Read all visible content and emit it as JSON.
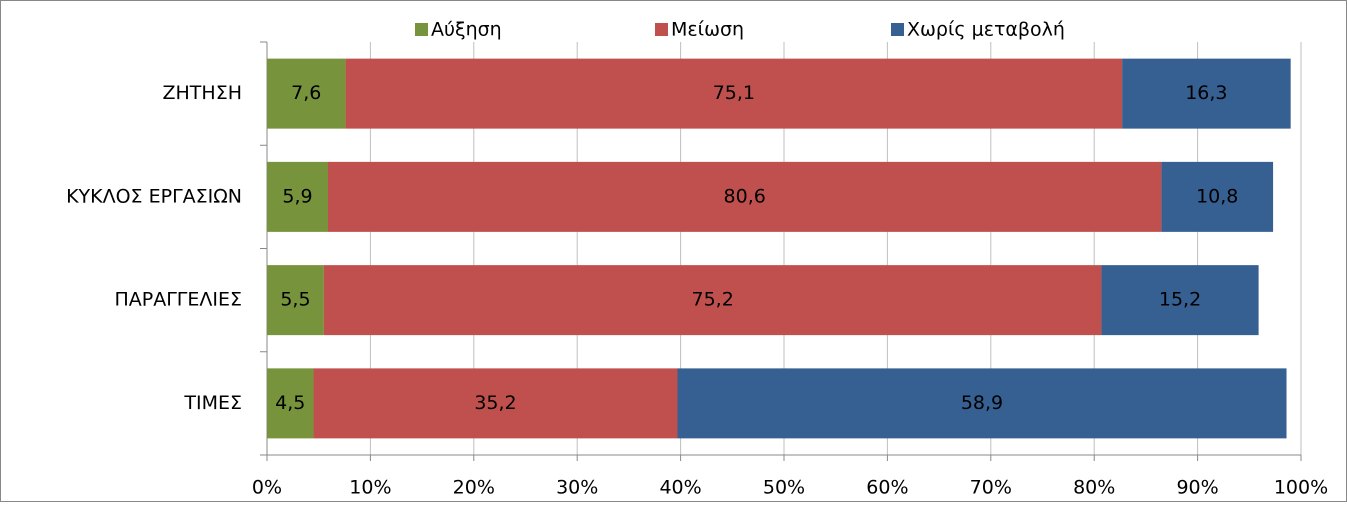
{
  "chart_data": {
    "type": "stacked-bar",
    "orientation": "horizontal",
    "categories": [
      "ΖΗΤΗΣΗ",
      "ΚΥΚΛΟΣ ΕΡΓΑΣΙΩΝ",
      "ΠΑΡΑΓΓΕΛΙΕΣ",
      "ΤΙΜΕΣ"
    ],
    "series": [
      {
        "name": "Αύξηση",
        "color": "#77933c",
        "values": [
          7.6,
          5.9,
          5.5,
          4.5
        ],
        "value_labels": [
          "7,6",
          "5,9",
          "5,5",
          "4,5"
        ]
      },
      {
        "name": "Μείωση",
        "color": "#c0504d",
        "values": [
          75.1,
          80.6,
          75.2,
          35.2
        ],
        "value_labels": [
          "75,1",
          "80,6",
          "75,2",
          "35,2"
        ]
      },
      {
        "name": "Χωρίς μεταβολή",
        "color": "#376092",
        "values": [
          16.3,
          10.8,
          15.2,
          58.9
        ],
        "value_labels": [
          "16,3",
          "10,8",
          "15,2",
          "58,9"
        ]
      }
    ],
    "xlim": [
      0,
      100
    ],
    "xticks": [
      {
        "value": 0,
        "label": "0%"
      },
      {
        "value": 10,
        "label": "10%"
      },
      {
        "value": 20,
        "label": "20%"
      },
      {
        "value": 30,
        "label": "30%"
      },
      {
        "value": 40,
        "label": "40%"
      },
      {
        "value": 50,
        "label": "50%"
      },
      {
        "value": 60,
        "label": "60%"
      },
      {
        "value": 70,
        "label": "70%"
      },
      {
        "value": 80,
        "label": "80%"
      },
      {
        "value": 90,
        "label": "90%"
      },
      {
        "value": 100,
        "label": "100%"
      }
    ],
    "grid": true,
    "legend": "top"
  }
}
